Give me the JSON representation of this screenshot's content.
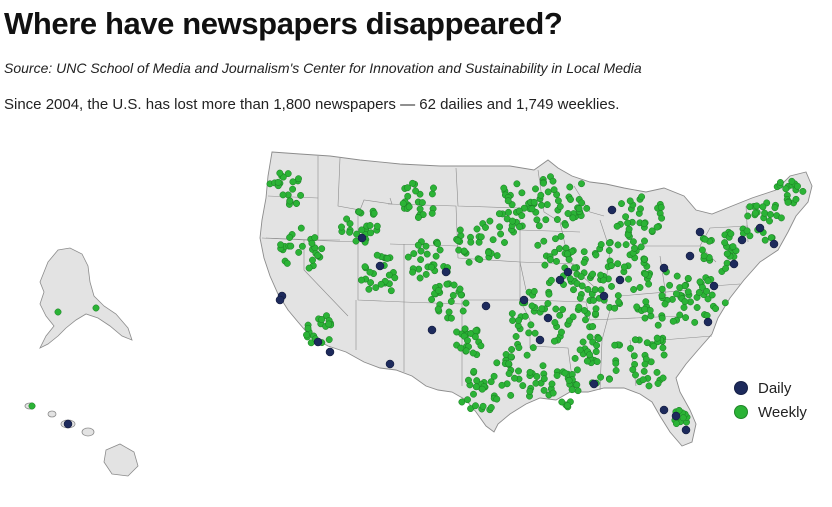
{
  "title": "Where have newspapers disappeared?",
  "source": "Source: UNC School of Media and Journalism's Center for Innovation and Sustainability in Local Media",
  "summary": "Since 2004, the U.S. has lost more than 1,800 newspapers — 62 dailies and 1,749 weeklies.",
  "colors": {
    "daily": "#1d2a5c",
    "weekly": "#2bb336",
    "land": "#e3e3e3",
    "state_border": "#8c8c8c",
    "background": "#ffffff"
  },
  "legend": [
    {
      "label": "Daily",
      "color": "#1d2a5c"
    },
    {
      "label": "Weekly",
      "color": "#2bb336"
    }
  ],
  "map_regions": [
    "contiguous-us",
    "alaska",
    "hawaii"
  ],
  "counts": {
    "dailies": 62,
    "weeklies": 1749
  }
}
